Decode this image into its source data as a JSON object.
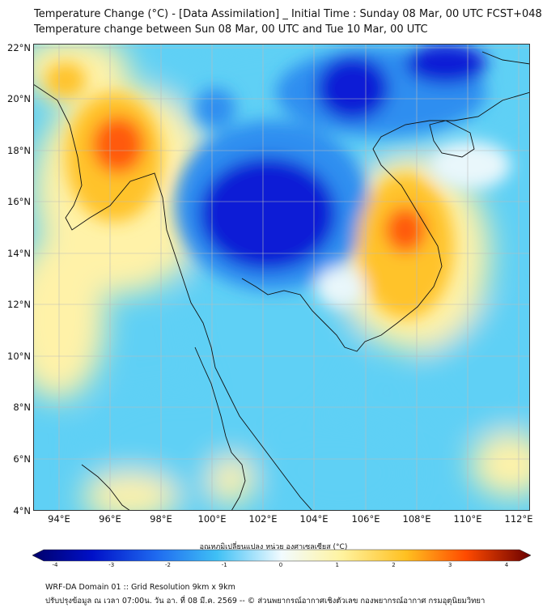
{
  "header": {
    "title_line1": "Temperature Change (°C) - [Data Assimilation] _ Initial Time : Sunday 08 Mar, 00 UTC FCST+048",
    "title_line2": "Temperature change between Sun 08 Mar, 00 UTC and Tue 10 Mar, 00 UTC"
  },
  "map": {
    "lat_labels": [
      "22°N",
      "20°N",
      "18°N",
      "16°N",
      "14°N",
      "12°N",
      "10°N",
      "8°N",
      "6°N",
      "4°N"
    ],
    "lon_labels": [
      "94°E",
      "96°E",
      "98°E",
      "100°E",
      "102°E",
      "104°E",
      "106°E",
      "108°E",
      "110°E",
      "112°E"
    ],
    "colors": {
      "strong_cooling": "#0a1fd6",
      "moderate_cooling": "#2f8ef0",
      "slight_cooling": "#5fd0f5",
      "near_zero": "#e9f7fb",
      "slight_warming": "#fff2a8",
      "moderate_warming": "#ffc32a",
      "strong_warming": "#ff5a0a",
      "coastline": "#111111",
      "gridline": "#bbbbbb"
    }
  },
  "colorbar": {
    "title": "อุณหภูมิเปลี่ยนแปลง หน่วย องศาเซลเซียส (°C)",
    "ticks": [
      "-4",
      "-3",
      "-2",
      "-1",
      "0",
      "1",
      "2",
      "3",
      "4"
    ],
    "range": [
      -4,
      4
    ]
  },
  "footer": {
    "line1": "WRF-DA Domain 01 :: Grid Resolution 9km x 9km",
    "line2": "ปรับปรุงข้อมูล ณ เวลา 07:00น. วัน อา. ที่ 08 มี.ค. 2569 -- © ส่วนพยากรณ์อากาศเชิงตัวเลข กองพยากรณ์อากาศ กรมอุตุนิยมวิทยา"
  }
}
